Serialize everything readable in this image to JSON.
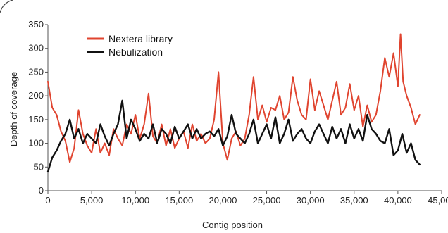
{
  "chart_data": {
    "type": "line",
    "title": "",
    "xlabel": "Contig position",
    "ylabel": "Depth of coverage",
    "xlim": [
      0,
      45000
    ],
    "ylim": [
      0,
      350
    ],
    "x_ticks": [
      0,
      5000,
      10000,
      15000,
      20000,
      25000,
      30000,
      35000,
      40000,
      45000
    ],
    "x_tick_labels": [
      "0",
      "5,000",
      "10,000",
      "15,000",
      "20,000",
      "25,000",
      "30,000",
      "35,000",
      "40,000",
      "45,000"
    ],
    "y_ticks": [
      0,
      50,
      100,
      150,
      200,
      250,
      300,
      350
    ],
    "y_tick_labels": [
      "0",
      "50",
      "100",
      "150",
      "200",
      "250",
      "300",
      "350"
    ],
    "grid": false,
    "legend_position": "top-left",
    "series": [
      {
        "name": "Nextera library",
        "color": "#e0442f",
        "x": [
          0,
          500,
          1000,
          1500,
          2000,
          2500,
          3000,
          3500,
          4000,
          4500,
          5000,
          5500,
          6000,
          6500,
          7000,
          7500,
          8000,
          8500,
          9000,
          9500,
          10000,
          10500,
          11000,
          11500,
          12000,
          12500,
          13000,
          13500,
          14000,
          14500,
          15000,
          15500,
          16000,
          16500,
          17000,
          17500,
          18000,
          18500,
          19000,
          19500,
          20000,
          20500,
          21000,
          21500,
          22000,
          22500,
          23000,
          23500,
          24000,
          24500,
          25000,
          25500,
          26000,
          26500,
          27000,
          27500,
          28000,
          28500,
          29000,
          29500,
          30000,
          30500,
          31000,
          31500,
          32000,
          32500,
          33000,
          33500,
          34000,
          34500,
          35000,
          35500,
          36000,
          36500,
          37000,
          37500,
          38000,
          38500,
          39000,
          39500,
          40000,
          40300,
          40600,
          41000,
          41500,
          42000,
          42500
        ],
        "values": [
          230,
          175,
          160,
          125,
          105,
          60,
          90,
          170,
          120,
          95,
          80,
          130,
          80,
          100,
          75,
          130,
          110,
          95,
          140,
          120,
          160,
          110,
          140,
          205,
          115,
          100,
          140,
          95,
          130,
          90,
          110,
          125,
          90,
          140,
          105,
          120,
          100,
          110,
          150,
          250,
          100,
          65,
          110,
          125,
          95,
          110,
          160,
          240,
          150,
          180,
          145,
          175,
          170,
          200,
          150,
          165,
          240,
          190,
          160,
          150,
          235,
          170,
          210,
          180,
          150,
          190,
          230,
          160,
          175,
          225,
          170,
          200,
          135,
          180,
          145,
          160,
          210,
          280,
          240,
          290,
          220,
          330,
          230,
          200,
          175,
          140,
          160
        ]
      },
      {
        "name": "Nebulization",
        "color": "#111111",
        "x": [
          0,
          500,
          1000,
          1500,
          2000,
          2500,
          3000,
          3500,
          4000,
          4500,
          5000,
          5500,
          6000,
          6500,
          7000,
          7500,
          8000,
          8500,
          9000,
          9500,
          10000,
          10500,
          11000,
          11500,
          12000,
          12500,
          13000,
          13500,
          14000,
          14500,
          15000,
          15500,
          16000,
          16500,
          17000,
          17500,
          18000,
          18500,
          19000,
          19500,
          20000,
          20500,
          21000,
          21500,
          22000,
          22500,
          23000,
          23500,
          24000,
          24500,
          25000,
          25500,
          26000,
          26500,
          27000,
          27500,
          28000,
          28500,
          29000,
          29500,
          30000,
          30500,
          31000,
          31500,
          32000,
          32500,
          33000,
          33500,
          34000,
          34500,
          35000,
          35500,
          36000,
          36500,
          37000,
          37500,
          38000,
          38500,
          39000,
          39500,
          40000,
          40500,
          41000,
          41500,
          42000,
          42500
        ],
        "values": [
          40,
          70,
          85,
          105,
          120,
          150,
          110,
          130,
          100,
          120,
          110,
          100,
          140,
          115,
          95,
          120,
          140,
          190,
          110,
          150,
          130,
          105,
          120,
          110,
          140,
          100,
          130,
          120,
          100,
          135,
          110,
          125,
          140,
          110,
          130,
          110,
          120,
          125,
          115,
          130,
          95,
          115,
          160,
          120,
          110,
          100,
          120,
          150,
          100,
          120,
          140,
          110,
          155,
          100,
          120,
          150,
          105,
          120,
          130,
          110,
          100,
          125,
          140,
          120,
          100,
          135,
          110,
          130,
          100,
          140,
          110,
          130,
          105,
          160,
          130,
          120,
          105,
          100,
          130,
          75,
          85,
          120,
          80,
          100,
          65,
          55
        ]
      }
    ]
  }
}
